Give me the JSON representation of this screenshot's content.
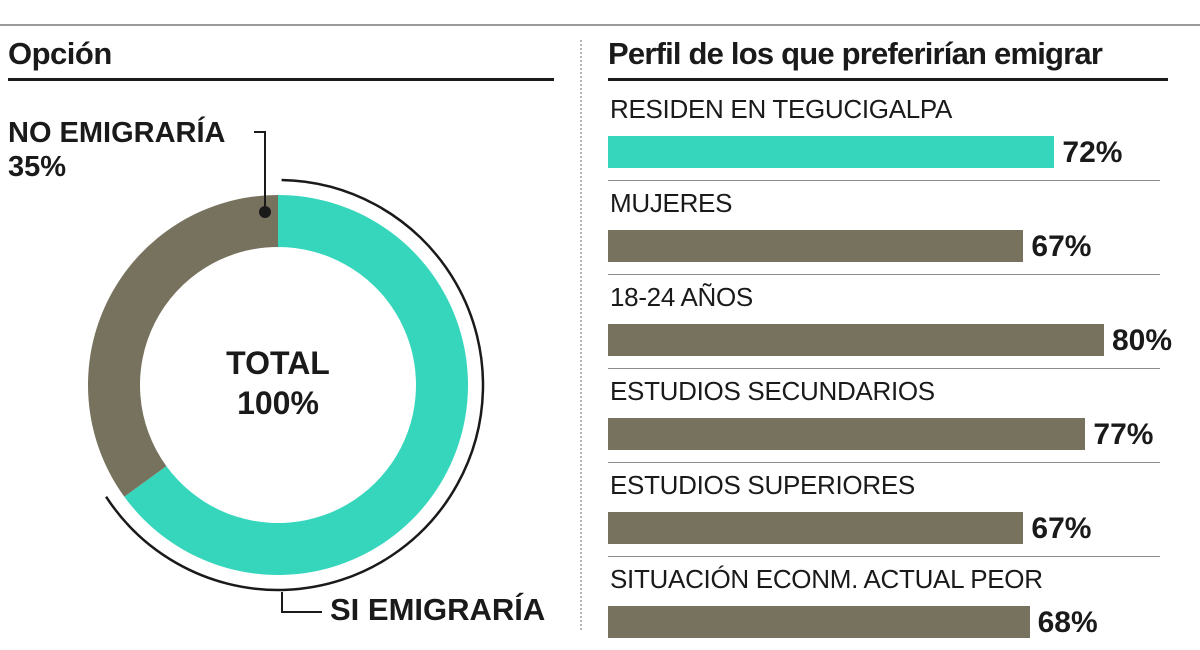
{
  "colors": {
    "accent": "#36d6bd",
    "bar": "#77725e",
    "text": "#1a1a1a"
  },
  "left_panel": {
    "title": "Opción",
    "no_label": "NO EMIGRARÍA",
    "no_pct": "35%",
    "si_label": "SI EMIGRARÍA",
    "center_line1": "TOTAL",
    "center_line2": "100%"
  },
  "right_panel": {
    "title": "Perfil de los que preferirían emigrar"
  },
  "chart_data": [
    {
      "type": "pie",
      "variant": "donut",
      "slices": [
        {
          "name": "SI EMIGRARÍA",
          "value": 65,
          "color": "#36d6bd"
        },
        {
          "name": "NO EMIGRARÍA",
          "value": 35,
          "color": "#77725e"
        }
      ],
      "center_text": [
        "TOTAL",
        "100%"
      ],
      "title": "Opción"
    },
    {
      "type": "bar",
      "orientation": "horizontal",
      "title": "Perfil de los que preferirían emigrar",
      "categories": [
        "RESIDEN EN TEGUCIGALPA",
        "MUJERES",
        "18-24 AÑOS",
        "ESTUDIOS SECUNDARIOS",
        "ESTUDIOS SUPERIORES",
        "SITUACIÓN ECONM. ACTUAL PEOR"
      ],
      "values": [
        72,
        67,
        80,
        77,
        67,
        68
      ],
      "value_labels": [
        "72%",
        "67%",
        "80%",
        "77%",
        "67%",
        "68%"
      ],
      "highlight_index": 0,
      "xlim": [
        0,
        100
      ]
    }
  ]
}
